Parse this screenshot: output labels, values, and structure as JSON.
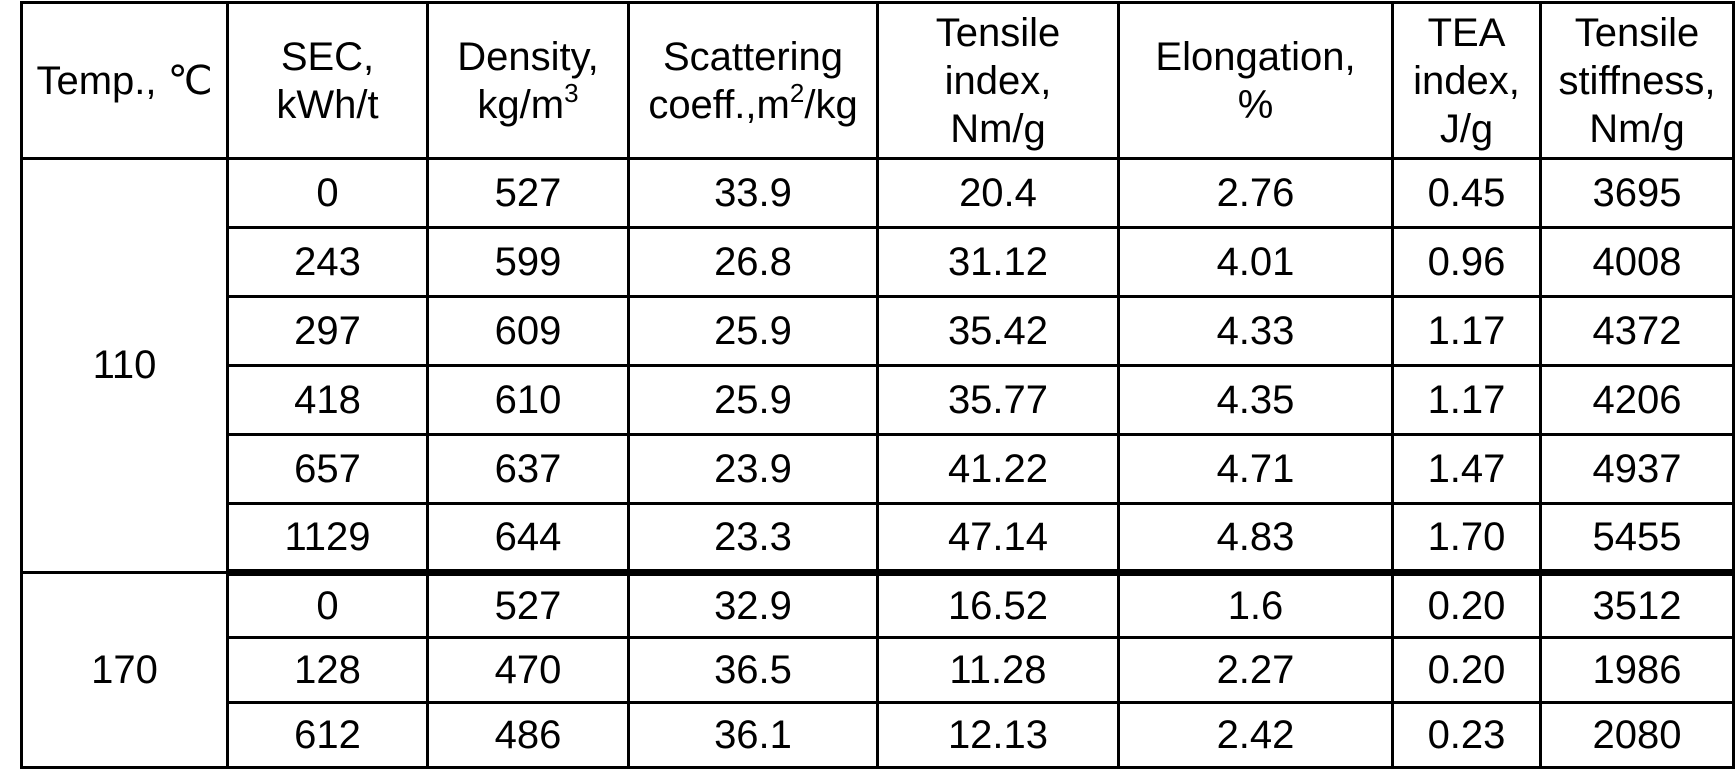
{
  "page": {
    "background_color": "#ffffff",
    "line_color": "#000000"
  },
  "table": {
    "columns": [
      {
        "id": "temp",
        "label": "Temp., ℃"
      },
      {
        "id": "sec",
        "label": "SEC,\nkWh/t"
      },
      {
        "id": "density",
        "label": "Density,\nkg/m³"
      },
      {
        "id": "scattering-coeff",
        "label": "Scattering\ncoeff.,m²/kg"
      },
      {
        "id": "tensile-index",
        "label": "Tensile\nindex,\nNm/g"
      },
      {
        "id": "elongation",
        "label": "Elongation,\n%"
      },
      {
        "id": "tea-index",
        "label": "TEA\nindex,\nJ/g"
      },
      {
        "id": "tensile-stiffness",
        "label": "Tensile\nstiffness,\nNm/g"
      }
    ],
    "groups": [
      {
        "temp": "110",
        "rows": [
          [
            "0",
            "527",
            "33.9",
            "20.4",
            "2.76",
            "0.45",
            "3695"
          ],
          [
            "243",
            "599",
            "26.8",
            "31.12",
            "4.01",
            "0.96",
            "4008"
          ],
          [
            "297",
            "609",
            "25.9",
            "35.42",
            "4.33",
            "1.17",
            "4372"
          ],
          [
            "418",
            "610",
            "25.9",
            "35.77",
            "4.35",
            "1.17",
            "4206"
          ],
          [
            "657",
            "637",
            "23.9",
            "41.22",
            "4.71",
            "1.47",
            "4937"
          ],
          [
            "1129",
            "644",
            "23.3",
            "47.14",
            "4.83",
            "1.70",
            "5455"
          ]
        ]
      },
      {
        "temp": "170",
        "rows": [
          [
            "0",
            "527",
            "32.9",
            "16.52",
            "1.6",
            "0.20",
            "3512"
          ],
          [
            "128",
            "470",
            "36.5",
            "11.28",
            "2.27",
            "0.20",
            "1986"
          ],
          [
            "612",
            "486",
            "36.1",
            "12.13",
            "2.42",
            "0.23",
            "2080"
          ]
        ]
      }
    ]
  }
}
